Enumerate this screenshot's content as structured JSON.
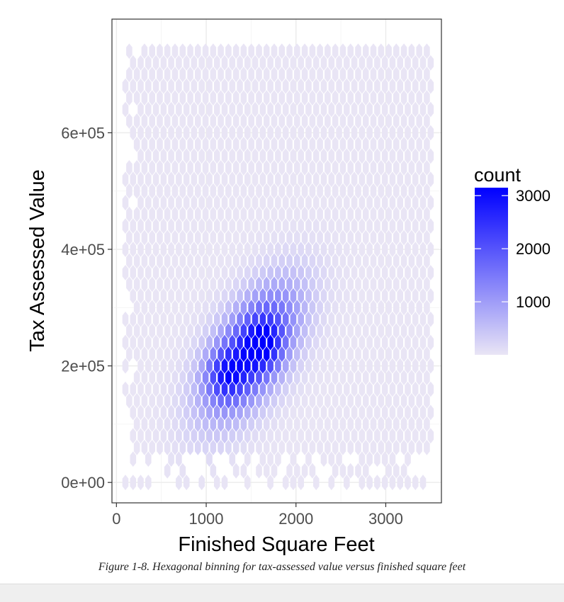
{
  "caption": "Figure 1-8. Hexagonal binning for tax-assessed value versus finished square feet",
  "chart_data": {
    "type": "heatmap",
    "subtype": "hexbin",
    "xlabel": "Finished Square Feet",
    "ylabel": "Tax Assessed Value",
    "x_ticks": [
      0,
      1000,
      2000,
      3000
    ],
    "x_tick_labels": [
      "0",
      "1000",
      "2000",
      "3000"
    ],
    "y_ticks": [
      0,
      200000,
      400000,
      600000
    ],
    "y_tick_labels": [
      "0e+00",
      "2e+05",
      "4e+05",
      "6e+05"
    ],
    "xlim": [
      -50,
      3620
    ],
    "ylim": [
      -35000,
      795000
    ],
    "grid": true,
    "legend": {
      "title": "count",
      "position": "right",
      "ticks": [
        1000,
        2000,
        3000
      ],
      "tick_labels": [
        "1000",
        "2000",
        "3000"
      ],
      "range": [
        1,
        3150
      ],
      "color_low": "#e9e5f5",
      "color_high": "#0000ff"
    },
    "hexbin": {
      "x_step": 85,
      "y_step": 20000,
      "x_range": [
        100,
        3500
      ],
      "y_range": [
        0,
        750000
      ],
      "density_peaks": [
        {
          "x": 1200,
          "y": 185000,
          "count": 3100
        },
        {
          "x": 1650,
          "y": 235000,
          "count": 2900
        }
      ]
    }
  }
}
